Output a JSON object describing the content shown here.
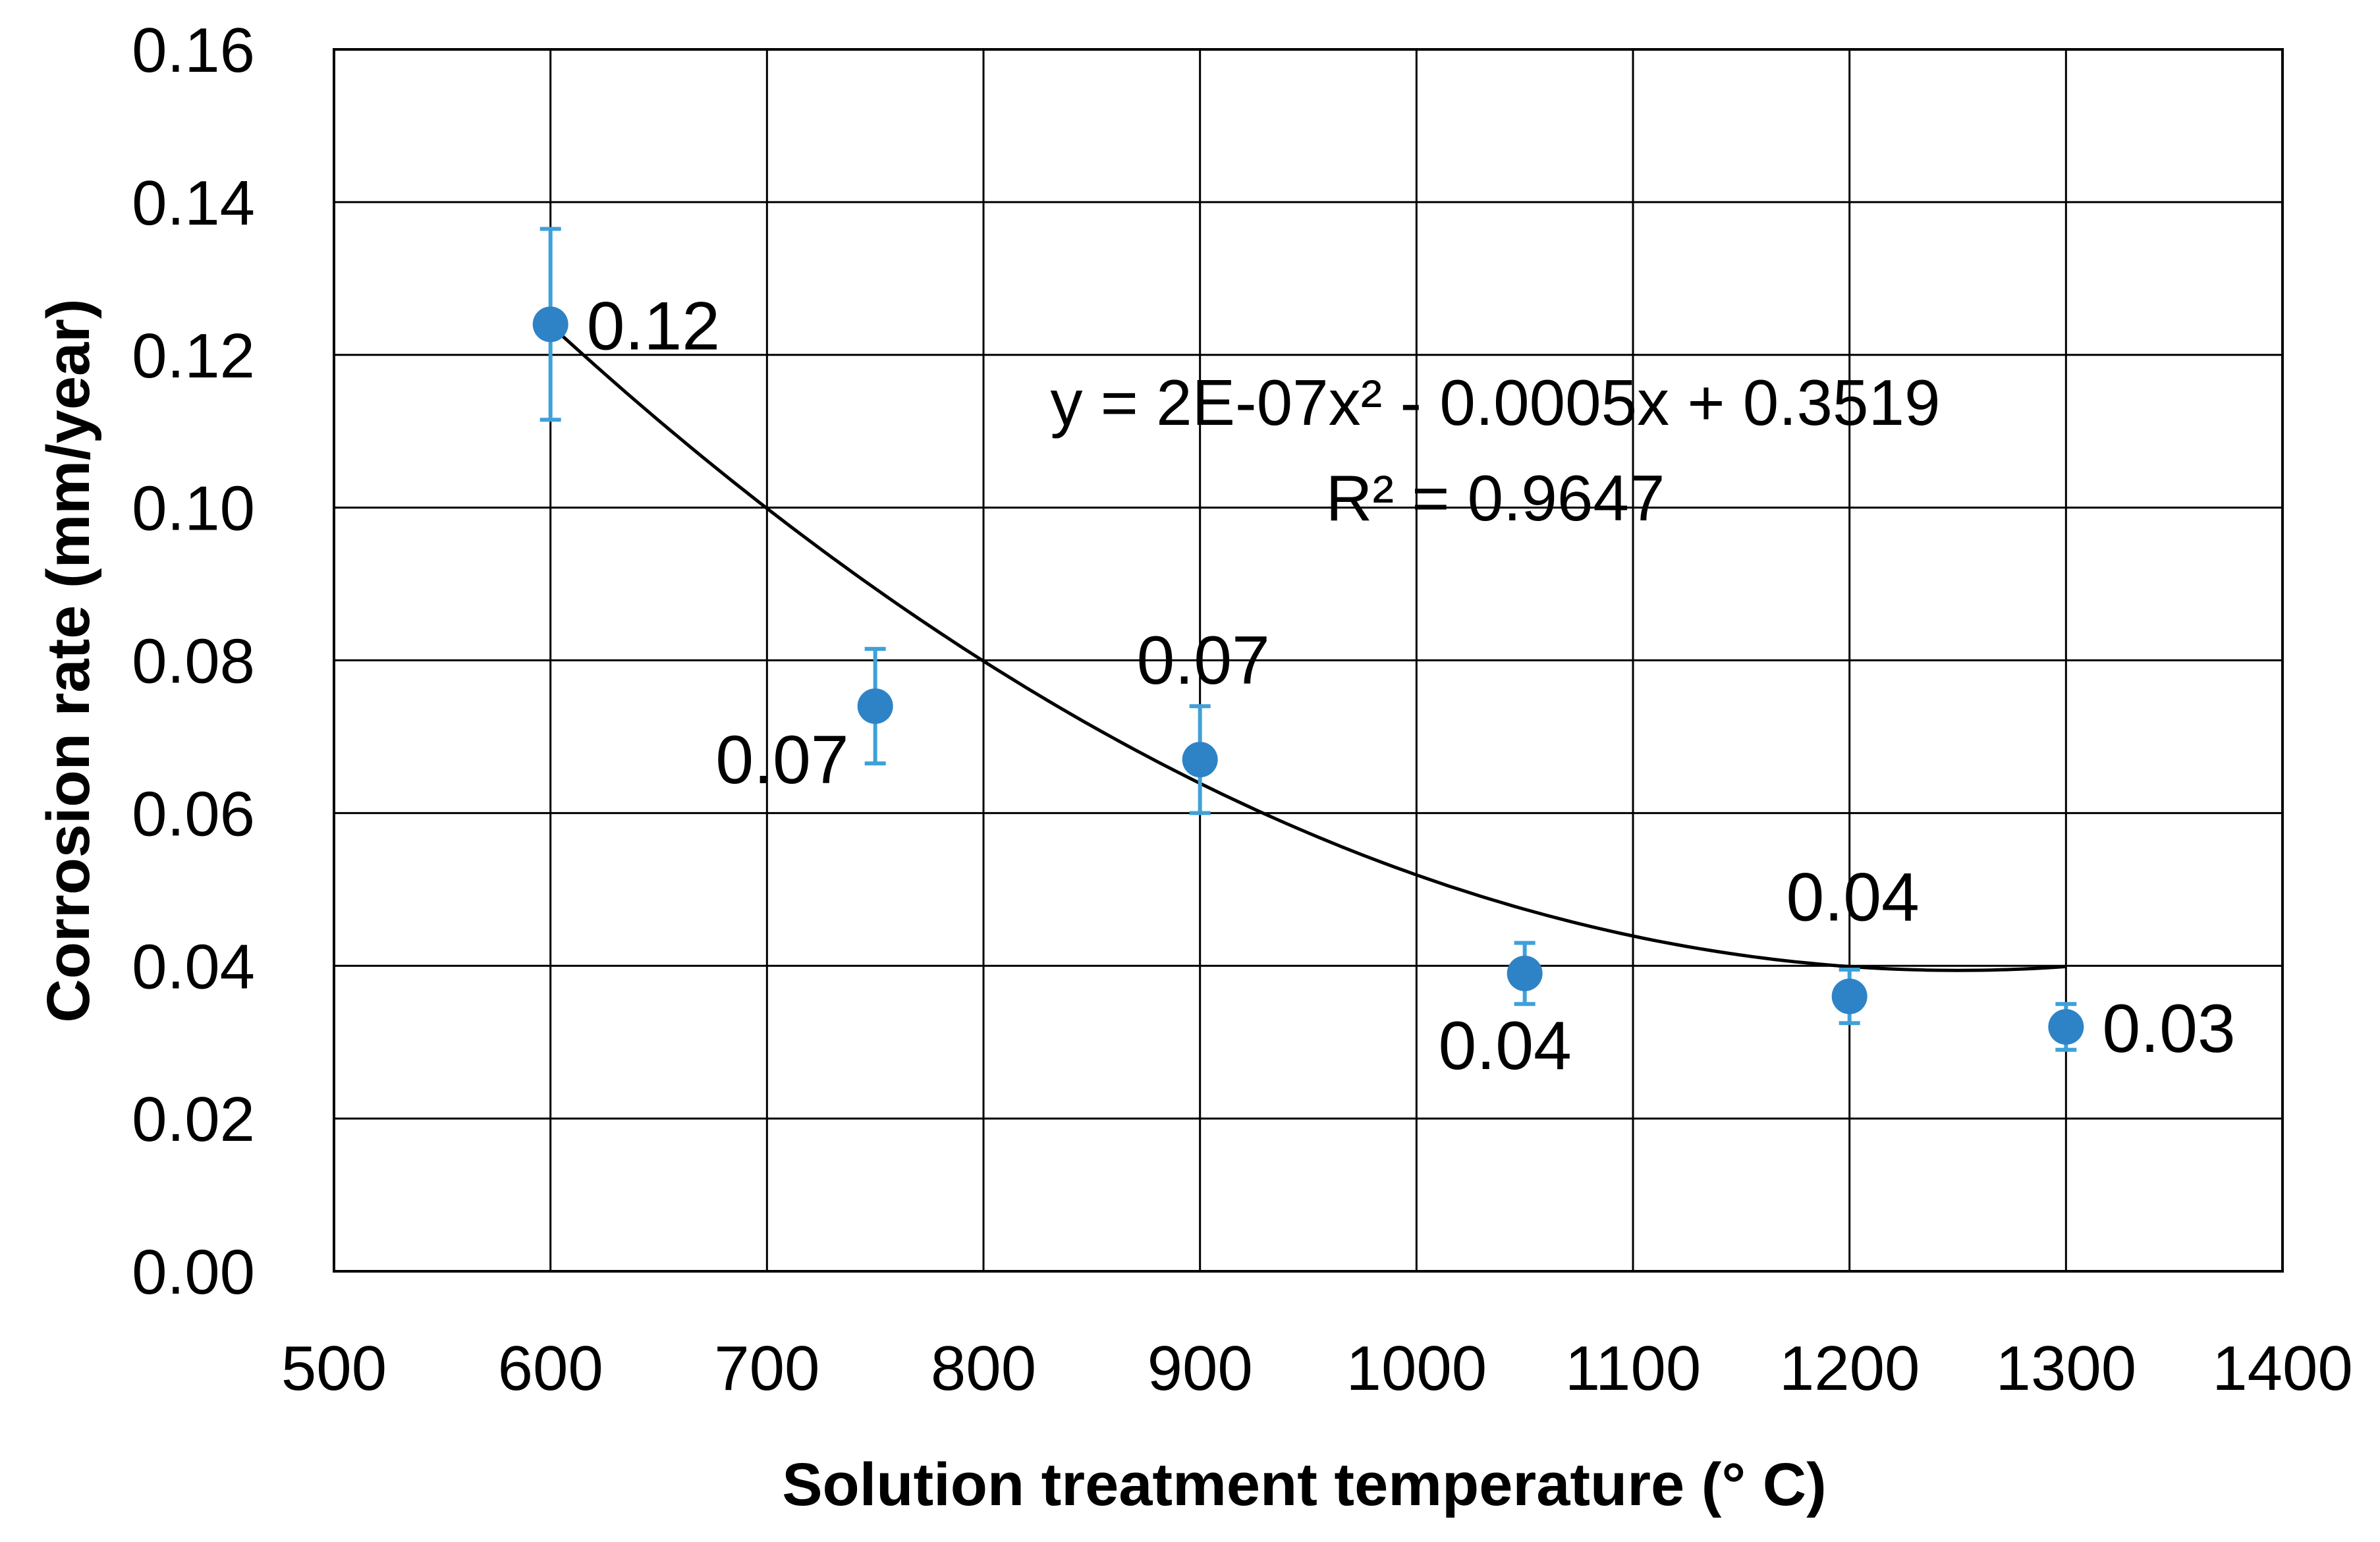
{
  "chart_data": {
    "type": "scatter",
    "title": "",
    "xlabel": "Solution treatment temperature (° C)",
    "ylabel": "Corrosion rate (mm/year)",
    "xlim": [
      500,
      1400
    ],
    "ylim": [
      0,
      0.16
    ],
    "x_ticks": [
      500,
      600,
      700,
      800,
      900,
      1000,
      1100,
      1200,
      1300,
      1400
    ],
    "y_ticks": [
      0,
      0.02,
      0.04,
      0.06,
      0.08,
      0.1,
      0.12,
      0.14,
      0.16
    ],
    "y_tick_labels": [
      "0.00",
      "0.02",
      "0.04",
      "0.06",
      "0.08",
      "0.10",
      "0.12",
      "0.14",
      "0.16"
    ],
    "grid": true,
    "series": [
      {
        "name": "Corrosion rate",
        "color": "#2E83C6",
        "errorbar_color": "#3FA1D8",
        "points": [
          {
            "x": 600,
            "y": 0.124,
            "err": 0.0125,
            "label": "0.12",
            "label_pos": "right"
          },
          {
            "x": 750,
            "y": 0.074,
            "err": 0.0075,
            "label": "0.07",
            "label_pos": "below-left"
          },
          {
            "x": 900,
            "y": 0.067,
            "err": 0.007,
            "label": "0.07",
            "label_pos": "above"
          },
          {
            "x": 1050,
            "y": 0.039,
            "err": 0.004,
            "label": "0.04",
            "label_pos": "below"
          },
          {
            "x": 1200,
            "y": 0.036,
            "err": 0.0035,
            "label": "0.04",
            "label_pos": "above"
          },
          {
            "x": 1300,
            "y": 0.032,
            "err": 0.003,
            "label": "0.03",
            "label_pos": "right"
          }
        ]
      }
    ],
    "trendline": {
      "type": "polynomial",
      "color": "#000000",
      "coefficients": [
        2e-07,
        -0.0005,
        0.3519
      ],
      "x_range": [
        600,
        1300
      ],
      "equation_text": "y = 2E-07x² - 0.0005x + 0.3519",
      "r2_text": "R² = 0.9647"
    }
  }
}
